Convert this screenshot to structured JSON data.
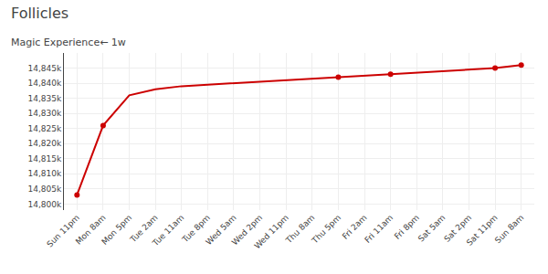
{
  "chart_data": {
    "type": "line",
    "title": "Follicles",
    "subtitle": "Magic Experience← 1w",
    "categories": [
      "Sun 11pm",
      "Mon 8am",
      "Mon 5pm",
      "Tue 2am",
      "Tue 11am",
      "Tue 8pm",
      "Wed 5am",
      "Wed 2pm",
      "Wed 11pm",
      "Thu 8am",
      "Thu 5pm",
      "Fri 2am",
      "Fri 11am",
      "Fri 8pm",
      "Sat 5am",
      "Sat 2pm",
      "Sat 11pm",
      "Sun 8am"
    ],
    "series": [
      {
        "type": "line",
        "color": "#cc0000",
        "values": [
          14803,
          14826,
          14836,
          14838,
          14839,
          14839.5,
          14840,
          14840.5,
          14841,
          14841.5,
          14842,
          14842.5,
          14843,
          14843.5,
          14844,
          14844.5,
          14845,
          14846
        ]
      },
      {
        "type": "scatter",
        "color": "#cc0000",
        "marker": "circle",
        "values": [
          14803,
          14826,
          null,
          null,
          null,
          null,
          null,
          null,
          null,
          null,
          14842,
          null,
          14843,
          null,
          null,
          null,
          14845,
          14846
        ]
      }
    ],
    "ylim": [
      14798,
      14850
    ],
    "yticks": [
      {
        "value": 14800,
        "label": "14,800k"
      },
      {
        "value": 14805,
        "label": "14,805k"
      },
      {
        "value": 14810,
        "label": "14,810k"
      },
      {
        "value": 14815,
        "label": "14,815k"
      },
      {
        "value": 14820,
        "label": "14,820k"
      },
      {
        "value": 14825,
        "label": "14,825k"
      },
      {
        "value": 14830,
        "label": "14,830k"
      },
      {
        "value": 14835,
        "label": "14,835k"
      },
      {
        "value": 14840,
        "label": "14,840k"
      },
      {
        "value": 14845,
        "label": "14,845k"
      }
    ],
    "grid": true
  }
}
